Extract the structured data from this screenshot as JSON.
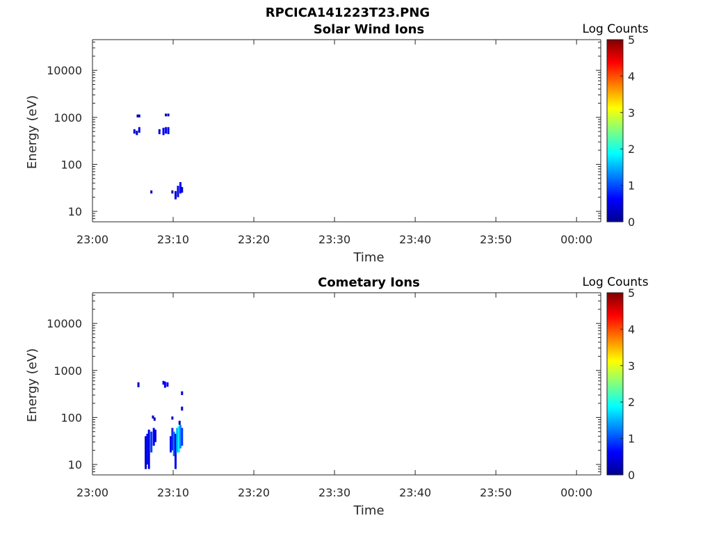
{
  "figure_title": "RPCICA141223T23.PNG",
  "chart_data": [
    {
      "type": "heatmap",
      "title": "Solar Wind Ions",
      "xlabel": "Time",
      "ylabel": "Energy (eV)",
      "yscale": "log",
      "ylim": [
        6,
        45000
      ],
      "xlim": [
        "23:00",
        "00:03"
      ],
      "x_ticks": [
        "23:00",
        "23:10",
        "23:20",
        "23:30",
        "23:40",
        "23:50",
        "00:00"
      ],
      "y_ticks": [
        "10",
        "100",
        "1000",
        "10000"
      ],
      "colorbar": {
        "label": "Log Counts",
        "range": [
          0,
          5
        ],
        "ticks": [
          "0",
          "1",
          "2",
          "3",
          "4",
          "5"
        ],
        "colormap": "jet"
      },
      "cells": [
        {
          "t": 5.6,
          "e0": 1000,
          "e1": 1150,
          "v": 0.3
        },
        {
          "t": 5.8,
          "e0": 1000,
          "e1": 1150,
          "v": 0.3
        },
        {
          "t": 9.1,
          "e0": 1050,
          "e1": 1200,
          "v": 0.3
        },
        {
          "t": 9.4,
          "e0": 1050,
          "e1": 1200,
          "v": 0.3
        },
        {
          "t": 5.2,
          "e0": 450,
          "e1": 560,
          "v": 0.4
        },
        {
          "t": 5.5,
          "e0": 420,
          "e1": 520,
          "v": 0.4
        },
        {
          "t": 5.8,
          "e0": 470,
          "e1": 620,
          "v": 0.5
        },
        {
          "t": 8.3,
          "e0": 440,
          "e1": 560,
          "v": 0.4
        },
        {
          "t": 8.8,
          "e0": 420,
          "e1": 600,
          "v": 0.5
        },
        {
          "t": 9.1,
          "e0": 450,
          "e1": 620,
          "v": 0.6
        },
        {
          "t": 9.4,
          "e0": 440,
          "e1": 620,
          "v": 0.5
        },
        {
          "t": 7.3,
          "e0": 24,
          "e1": 28,
          "v": 0.3
        },
        {
          "t": 9.9,
          "e0": 24,
          "e1": 28,
          "v": 0.3
        },
        {
          "t": 10.3,
          "e0": 18,
          "e1": 27,
          "v": 0.4
        },
        {
          "t": 10.6,
          "e0": 20,
          "e1": 35,
          "v": 0.5
        },
        {
          "t": 10.9,
          "e0": 24,
          "e1": 42,
          "v": 0.6
        },
        {
          "t": 11.1,
          "e0": 25,
          "e1": 33,
          "v": 0.4
        }
      ]
    },
    {
      "type": "heatmap",
      "title": "Cometary Ions",
      "xlabel": "Time",
      "ylabel": "Energy (eV)",
      "yscale": "log",
      "ylim": [
        6,
        45000
      ],
      "xlim": [
        "23:00",
        "00:03"
      ],
      "x_ticks": [
        "23:00",
        "23:10",
        "23:20",
        "23:30",
        "23:40",
        "23:50",
        "00:00"
      ],
      "y_ticks": [
        "10",
        "100",
        "1000",
        "10000"
      ],
      "colorbar": {
        "label": "Log Counts",
        "range": [
          0,
          5
        ],
        "ticks": [
          "0",
          "1",
          "2",
          "3",
          "4",
          "5"
        ],
        "colormap": "jet"
      },
      "cells": [
        {
          "t": 5.7,
          "e0": 440,
          "e1": 560,
          "v": 0.4
        },
        {
          "t": 8.8,
          "e0": 500,
          "e1": 600,
          "v": 0.5
        },
        {
          "t": 9.0,
          "e0": 430,
          "e1": 580,
          "v": 0.6
        },
        {
          "t": 9.3,
          "e0": 450,
          "e1": 560,
          "v": 0.5
        },
        {
          "t": 11.1,
          "e0": 300,
          "e1": 360,
          "v": 0.4
        },
        {
          "t": 11.1,
          "e0": 140,
          "e1": 170,
          "v": 0.4
        },
        {
          "t": 7.5,
          "e0": 95,
          "e1": 110,
          "v": 0.3
        },
        {
          "t": 7.7,
          "e0": 85,
          "e1": 100,
          "v": 0.3
        },
        {
          "t": 9.9,
          "e0": 90,
          "e1": 105,
          "v": 0.3
        },
        {
          "t": 10.8,
          "e0": 70,
          "e1": 85,
          "v": 0.3
        },
        {
          "t": 6.6,
          "e0": 8,
          "e1": 40,
          "v": 0.3
        },
        {
          "t": 6.8,
          "e0": 10,
          "e1": 45,
          "v": 0.7
        },
        {
          "t": 7.0,
          "e0": 8,
          "e1": 55,
          "v": 0.5
        },
        {
          "t": 7.3,
          "e0": 18,
          "e1": 50,
          "v": 0.9
        },
        {
          "t": 7.6,
          "e0": 25,
          "e1": 60,
          "v": 0.6
        },
        {
          "t": 7.8,
          "e0": 30,
          "e1": 55,
          "v": 0.4
        },
        {
          "t": 9.7,
          "e0": 18,
          "e1": 40,
          "v": 0.6
        },
        {
          "t": 9.9,
          "e0": 20,
          "e1": 60,
          "v": 0.8
        },
        {
          "t": 10.1,
          "e0": 15,
          "e1": 50,
          "v": 1.2
        },
        {
          "t": 10.3,
          "e0": 8,
          "e1": 45,
          "v": 0.5
        },
        {
          "t": 10.5,
          "e0": 18,
          "e1": 60,
          "v": 1.5
        },
        {
          "t": 10.7,
          "e0": 18,
          "e1": 65,
          "v": 1.8
        },
        {
          "t": 10.9,
          "e0": 22,
          "e1": 70,
          "v": 1.3
        },
        {
          "t": 11.1,
          "e0": 25,
          "e1": 60,
          "v": 0.9
        }
      ]
    }
  ]
}
